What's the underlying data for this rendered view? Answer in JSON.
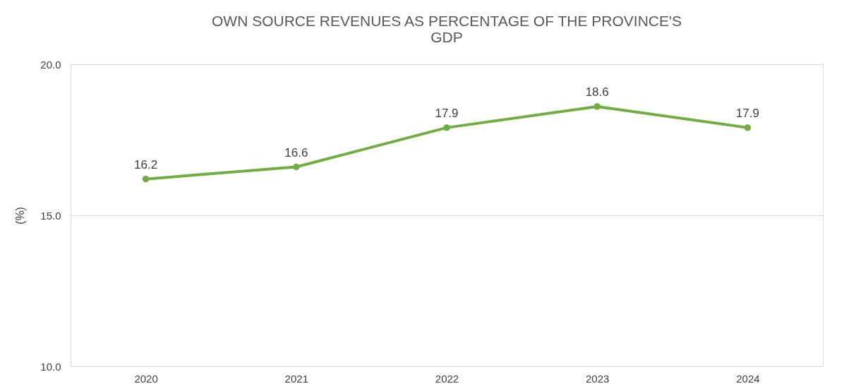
{
  "chart_data": {
    "type": "line",
    "title": "OWN SOURCE REVENUES AS PERCENTAGE OF THE PROVINCE'S GDP",
    "ylabel": "(%)",
    "categories": [
      "2020",
      "2021",
      "2022",
      "2023",
      "2024"
    ],
    "series": [
      {
        "color": "#70ad47",
        "values": [
          16.2,
          16.6,
          17.9,
          18.6,
          17.9
        ]
      }
    ],
    "ylim": [
      10,
      20
    ],
    "yticks": [
      {
        "value": 10,
        "label": "10.0"
      },
      {
        "value": 15,
        "label": "15.0"
      },
      {
        "value": 20,
        "label": "20.0"
      }
    ],
    "grid": "y",
    "marker": "circle",
    "line_style": "solid",
    "data_labels": true
  }
}
